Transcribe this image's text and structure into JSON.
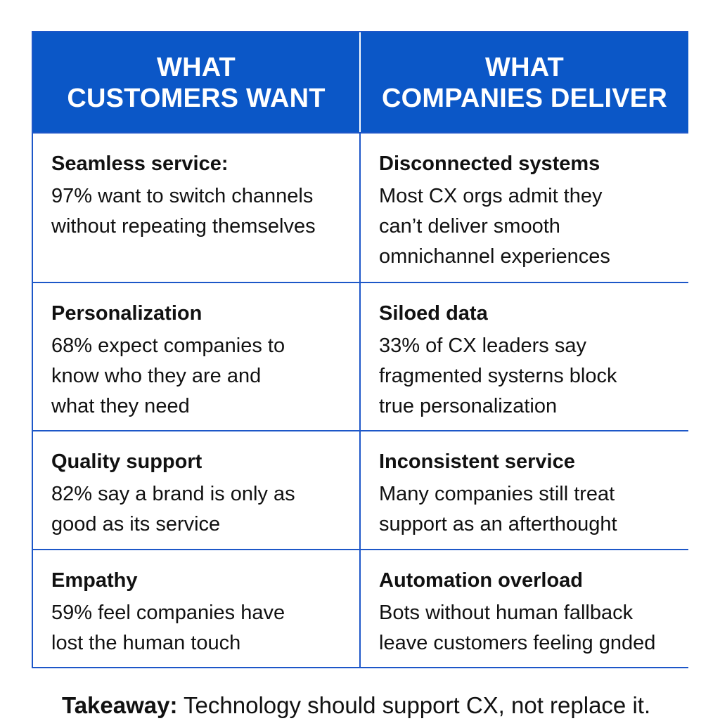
{
  "header": {
    "left": "WHAT\nCUSTOMERS WANT",
    "right": "WHAT\nCOMPANIES DELIVER"
  },
  "rows": [
    {
      "want_title": "Seamless service:",
      "want_body": "97% want to switch channels\nwithout repeating themselves",
      "deliver_title": "Disconnected systems",
      "deliver_body": "Most CX orgs admit they\ncan’t deliver smooth\nomnichannel experiences"
    },
    {
      "want_title": "Personalization",
      "want_body": "68% expect companies to\nknow who they are and\nwhat they need",
      "deliver_title": "Siloed data",
      "deliver_body": "33% of CX leaders say\nfragmented systerns block\ntrue personalization"
    },
    {
      "want_title": "Quality support",
      "want_body": "82% say a brand is only as\ngood as its service",
      "deliver_title": "Inconsistent service",
      "deliver_body": "Many companies still treat\nsupport as an afterthought"
    },
    {
      "want_title": "Empathy",
      "want_body": "59% feel companies have\nlost the human touch",
      "deliver_title": "Automation overload",
      "deliver_body": "Bots without human fallback\nleave customers feeling gnded"
    }
  ],
  "takeaway": {
    "label": "Takeaway:",
    "text": " Technology should support CX, not replace it."
  },
  "colors": {
    "header_bg": "#0b57c7",
    "border": "#1d57c8"
  }
}
